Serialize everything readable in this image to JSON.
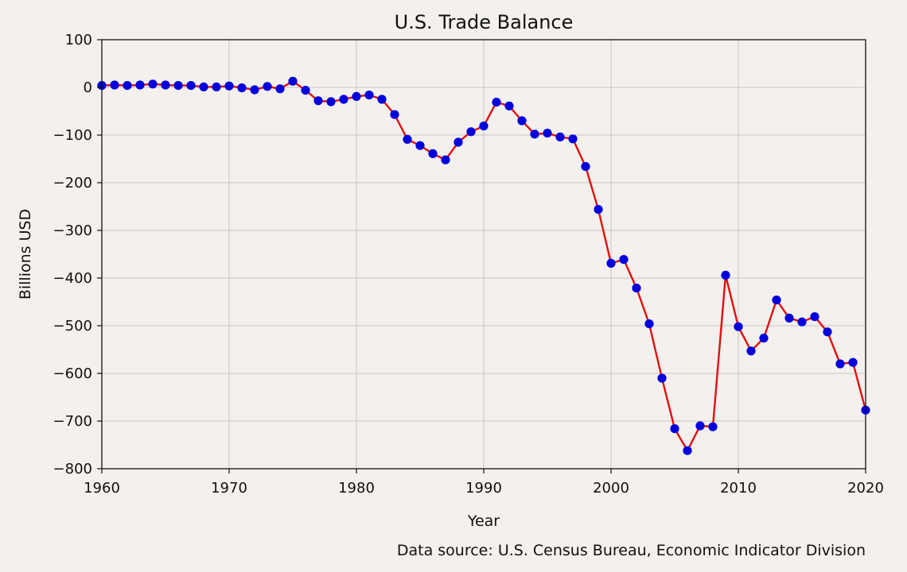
{
  "chart_data": {
    "type": "line",
    "title": "U.S. Trade Balance",
    "xlabel": "Year",
    "ylabel": "Billions USD",
    "source_note": "Data source: U.S. Census Bureau, Economic Indicator Division",
    "xlim": [
      1960,
      2020
    ],
    "ylim": [
      -800,
      100
    ],
    "x_ticks": [
      1960,
      1970,
      1980,
      1990,
      2000,
      2010,
      2020
    ],
    "y_ticks": [
      100,
      0,
      -100,
      -200,
      -300,
      -400,
      -500,
      -600,
      -700,
      -800
    ],
    "grid": true,
    "line_color": "#e01010",
    "marker_color": "#0000dd",
    "series": [
      {
        "x": [
          1960,
          1961,
          1962,
          1963,
          1964,
          1965,
          1966,
          1967,
          1968,
          1969,
          1970,
          1971,
          1972,
          1973,
          1974,
          1975,
          1976,
          1977,
          1978,
          1979,
          1980,
          1981,
          1982,
          1983,
          1984,
          1985,
          1986,
          1987,
          1988,
          1989,
          1990,
          1991,
          1992,
          1993,
          1994,
          1995,
          1996,
          1997,
          1998,
          1999,
          2000,
          2001,
          2002,
          2003,
          2004,
          2005,
          2006,
          2007,
          2008,
          2009,
          2010,
          2011,
          2012,
          2013,
          2014,
          2015,
          2016,
          2017,
          2018,
          2019,
          2020
        ],
        "values": [
          4,
          5,
          4,
          5,
          7,
          5,
          4,
          4,
          1,
          1,
          3,
          -1,
          -5,
          2,
          -3,
          13,
          -6,
          -28,
          -30,
          -25,
          -19,
          -16,
          -25,
          -57,
          -109,
          -122,
          -139,
          -152,
          -115,
          -93,
          -81,
          -31,
          -39,
          -70,
          -98,
          -96,
          -104,
          -108,
          -166,
          -256,
          -369,
          -361,
          -421,
          -496,
          -610,
          -716,
          -762,
          -710,
          -712,
          -394,
          -502,
          -553,
          -526,
          -446,
          -484,
          -492,
          -481,
          -513,
          -580,
          -577,
          -677
        ]
      }
    ]
  }
}
